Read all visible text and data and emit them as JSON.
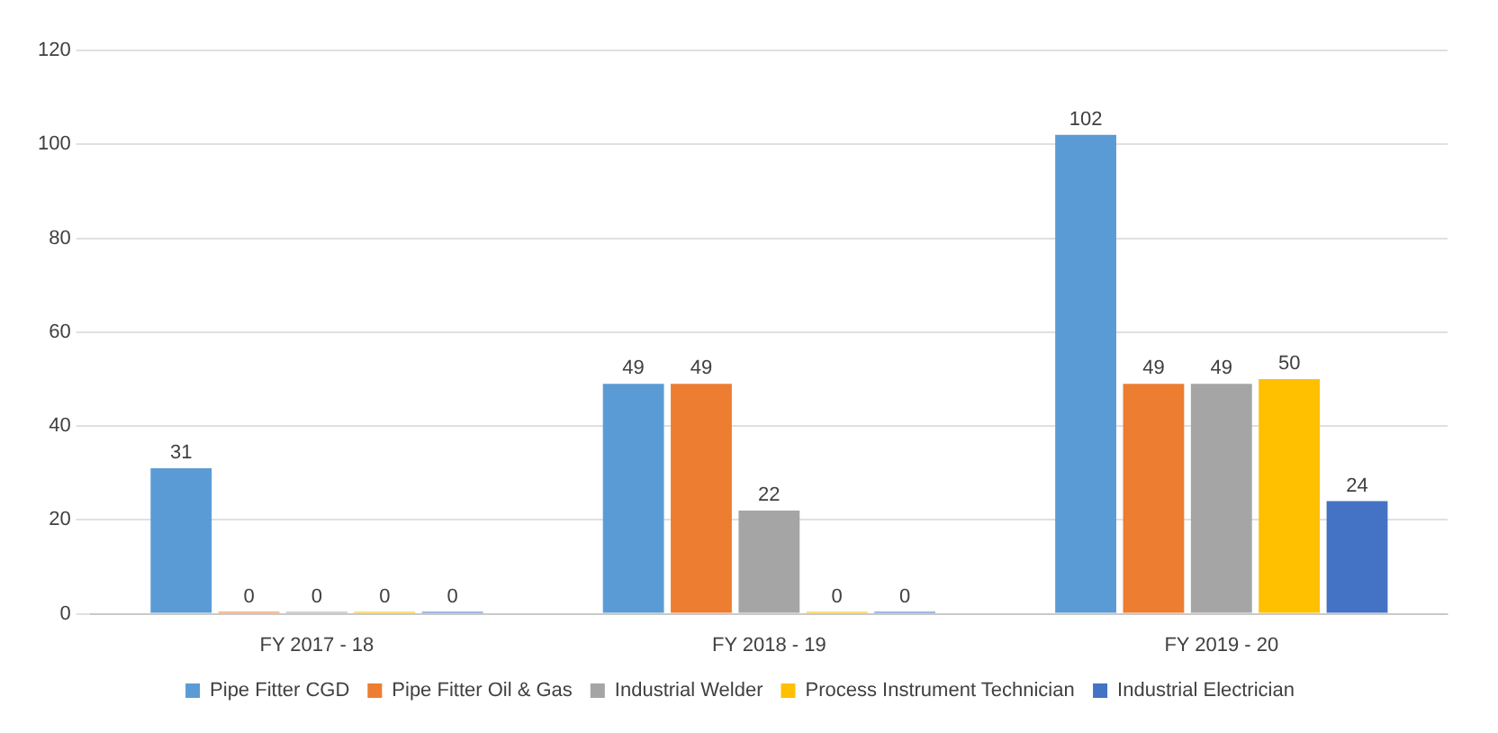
{
  "chart_data": {
    "type": "bar",
    "categories": [
      "FY 2017 - 18",
      "FY 2018 - 19",
      "FY 2019 - 20"
    ],
    "series": [
      {
        "name": "Pipe Fitter CGD",
        "color": "#5b9bd5",
        "values": [
          31,
          49,
          102
        ]
      },
      {
        "name": "Pipe Fitter Oil & Gas",
        "color": "#ed7d31",
        "values": [
          0,
          49,
          49
        ]
      },
      {
        "name": "Industrial Welder",
        "color": "#a5a5a5",
        "values": [
          0,
          22,
          49
        ]
      },
      {
        "name": "Process Instrument Technician",
        "color": "#ffc000",
        "values": [
          0,
          0,
          50
        ]
      },
      {
        "name": "Industrial Electrician",
        "color": "#4472c4",
        "values": [
          0,
          0,
          24
        ]
      }
    ],
    "ylim": [
      0,
      120
    ],
    "yticks": [
      0,
      20,
      40,
      60,
      80,
      100,
      120
    ],
    "grid": "y",
    "legend": "bottom",
    "data_labels": true
  }
}
